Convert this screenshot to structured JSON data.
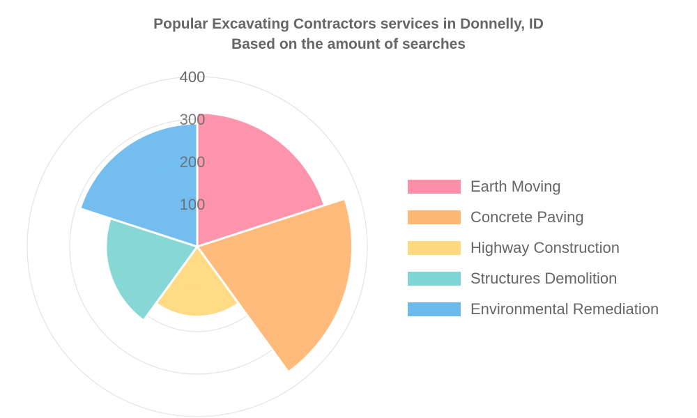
{
  "chart_data": {
    "type": "polarArea",
    "title": "Popular Excavating Contractors services in Donnelly, ID",
    "subtitle": "Based on the amount of searches",
    "categories": [
      "Earth Moving",
      "Concrete Paving",
      "Highway Construction",
      "Structures Demolition",
      "Environmental Remediation"
    ],
    "values": [
      315,
      365,
      165,
      215,
      290
    ],
    "colors": [
      "#ff8fa8",
      "#ffb774",
      "#ffd980",
      "#7fd5d3",
      "#6cbaee"
    ],
    "r_ticks": [
      100,
      200,
      300,
      400
    ],
    "r_max": 400,
    "grid": true,
    "legend_position": "right"
  }
}
